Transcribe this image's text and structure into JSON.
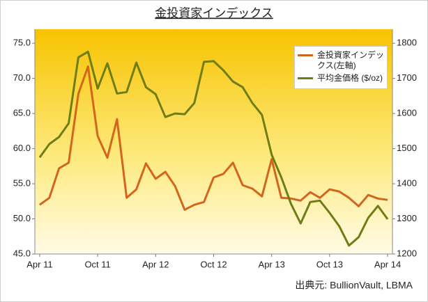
{
  "chart_data": {
    "type": "line",
    "title": "金投資家インデックス",
    "source": "出典元: BullionVault, LBMA",
    "categories": [
      "Apr 11",
      null,
      null,
      null,
      null,
      null,
      "Oct 11",
      null,
      null,
      null,
      null,
      null,
      "Apr 12",
      null,
      null,
      null,
      null,
      null,
      "Oct 12",
      null,
      null,
      null,
      null,
      null,
      "Apr 13",
      null,
      null,
      null,
      null,
      null,
      "Oct 13",
      null,
      null,
      null,
      null,
      null,
      "Apr 14"
    ],
    "series": [
      {
        "name": "金投資家インデックス(左軸)",
        "color": "#d4651c",
        "values": [
          52.0,
          53.0,
          57.2,
          58.0,
          67.8,
          71.7,
          61.8,
          58.7,
          64.2,
          53.0,
          54.2,
          57.9,
          55.7,
          56.7,
          54.7,
          51.3,
          52.0,
          52.4,
          55.9,
          56.4,
          58.0,
          54.8,
          54.3,
          53.2,
          58.5,
          53.0,
          52.9,
          52.6,
          53.8,
          53.0,
          54.2,
          53.9,
          53.0,
          51.8,
          53.4,
          52.9,
          52.7
        ]
      },
      {
        "name": "平均金価格 ($/oz)",
        "color": "#6e7d14",
        "axis": "y2",
        "values": [
          1475,
          1513,
          1533,
          1572,
          1760,
          1776,
          1671,
          1743,
          1657,
          1661,
          1745,
          1675,
          1655,
          1590,
          1600,
          1598,
          1630,
          1747,
          1749,
          1723,
          1691,
          1675,
          1630,
          1596,
          1483,
          1418,
          1343,
          1287,
          1348,
          1352,
          1317,
          1279,
          1224,
          1248,
          1303,
          1337,
          1299
        ]
      }
    ],
    "ylim": [
      45,
      77
    ],
    "yticks": [
      {
        "value": 45,
        "label": "45.0"
      },
      {
        "value": 50,
        "label": "50.0"
      },
      {
        "value": 55,
        "label": "55.0"
      },
      {
        "value": 60,
        "label": "60.0"
      },
      {
        "value": 65,
        "label": "65.0"
      },
      {
        "value": 70,
        "label": "70.0"
      },
      {
        "value": 75,
        "label": "75.0"
      }
    ],
    "y2lim": [
      1200,
      1840
    ],
    "y2ticks": [
      1200,
      1300,
      1400,
      1500,
      1600,
      1700,
      1800
    ],
    "grid": false,
    "legend": "top-right"
  }
}
